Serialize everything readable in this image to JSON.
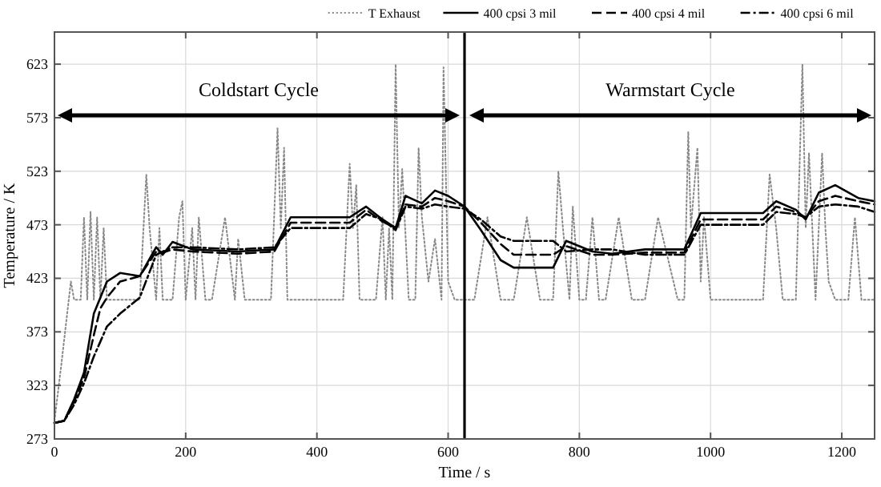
{
  "chart_data": {
    "type": "line",
    "xlabel": "Time / s",
    "ylabel": "Temperature / K",
    "xlim": [
      0,
      1250
    ],
    "ylim": [
      273,
      653
    ],
    "xticks": [
      0,
      200,
      400,
      600,
      800,
      1000,
      1200
    ],
    "yticks": [
      273,
      323,
      373,
      423,
      473,
      523,
      573,
      623
    ],
    "grid": true,
    "legend": "top",
    "ref_lines": [
      {
        "axis": "x",
        "value": 625,
        "color": "#000000"
      }
    ],
    "annotations": [
      "Coldstart Cycle",
      "Warmstart Cycle"
    ],
    "series": [
      {
        "name": "T Exhaust",
        "color": "#888888",
        "line_style": "dotted",
        "x": [
          0,
          10,
          25,
          30,
          40,
          45,
          50,
          55,
          60,
          65,
          70,
          75,
          80,
          90,
          100,
          110,
          130,
          140,
          145,
          155,
          160,
          165,
          170,
          180,
          190,
          195,
          200,
          210,
          215,
          220,
          230,
          240,
          260,
          275,
          280,
          290,
          300,
          330,
          340,
          345,
          350,
          355,
          360,
          370,
          390,
          420,
          440,
          450,
          455,
          460,
          465,
          470,
          480,
          490,
          500,
          505,
          510,
          515,
          520,
          525,
          530,
          540,
          550,
          555,
          560,
          570,
          580,
          590,
          593,
          600,
          610,
          620,
          630,
          640,
          660,
          680,
          700,
          720,
          740,
          760,
          768,
          775,
          785,
          790,
          800,
          810,
          820,
          830,
          840,
          860,
          880,
          900,
          920,
          950,
          960,
          966,
          970,
          980,
          985,
          990,
          1000,
          1020,
          1040,
          1060,
          1080,
          1090,
          1100,
          1110,
          1120,
          1130,
          1140,
          1145,
          1150,
          1160,
          1170,
          1175,
          1180,
          1190,
          1200,
          1210,
          1220,
          1230,
          1240,
          1250
        ],
        "values": [
          290,
          340,
          420,
          403,
          403,
          480,
          403,
          485,
          403,
          480,
          403,
          470,
          403,
          403,
          403,
          403,
          403,
          520,
          470,
          403,
          470,
          403,
          403,
          403,
          480,
          495,
          403,
          470,
          403,
          480,
          403,
          403,
          480,
          403,
          460,
          403,
          403,
          403,
          563,
          470,
          545,
          403,
          403,
          403,
          403,
          403,
          403,
          530,
          470,
          510,
          403,
          403,
          403,
          403,
          480,
          403,
          470,
          403,
          623,
          470,
          525,
          403,
          403,
          545,
          480,
          420,
          460,
          403,
          620,
          420,
          403,
          403,
          403,
          403,
          480,
          403,
          403,
          480,
          403,
          403,
          523,
          470,
          403,
          490,
          403,
          403,
          480,
          403,
          403,
          480,
          403,
          403,
          480,
          403,
          403,
          560,
          470,
          545,
          420,
          480,
          403,
          403,
          403,
          403,
          403,
          520,
          470,
          403,
          403,
          403,
          623,
          470,
          540,
          403,
          540,
          470,
          420,
          403,
          403,
          403,
          480,
          403,
          403,
          403
        ]
      },
      {
        "name": "400 cpsi 3 mil",
        "color": "#000000",
        "line_style": "solid",
        "x": [
          0,
          15,
          30,
          45,
          60,
          80,
          100,
          130,
          155,
          165,
          180,
          210,
          280,
          335,
          360,
          450,
          475,
          500,
          520,
          535,
          560,
          580,
          600,
          625,
          650,
          680,
          700,
          760,
          780,
          820,
          850,
          900,
          960,
          985,
          1080,
          1100,
          1130,
          1145,
          1165,
          1190,
          1225,
          1250
        ],
        "values": [
          288,
          290,
          310,
          335,
          390,
          420,
          428,
          425,
          452,
          445,
          457,
          450,
          448,
          450,
          480,
          480,
          490,
          478,
          470,
          500,
          493,
          505,
          500,
          490,
          468,
          440,
          433,
          433,
          458,
          448,
          446,
          450,
          450,
          484,
          484,
          495,
          487,
          478,
          503,
          510,
          498,
          495
        ]
      },
      {
        "name": "400 cpsi 4 mil",
        "color": "#000000",
        "line_style": "dashed",
        "x": [
          0,
          15,
          30,
          45,
          60,
          70,
          80,
          100,
          130,
          155,
          165,
          180,
          210,
          280,
          335,
          360,
          450,
          475,
          500,
          520,
          535,
          560,
          580,
          600,
          625,
          650,
          680,
          700,
          760,
          780,
          820,
          850,
          900,
          960,
          985,
          1080,
          1100,
          1130,
          1145,
          1165,
          1190,
          1225,
          1250
        ],
        "values": [
          288,
          290,
          308,
          330,
          370,
          395,
          405,
          420,
          425,
          448,
          447,
          450,
          448,
          446,
          448,
          475,
          475,
          487,
          476,
          470,
          492,
          490,
          498,
          495,
          490,
          475,
          455,
          445,
          445,
          453,
          445,
          445,
          447,
          447,
          478,
          478,
          490,
          485,
          480,
          495,
          500,
          495,
          492
        ]
      },
      {
        "name": "400 cpsi 6 mil",
        "color": "#000000",
        "line_style": "dashdot",
        "x": [
          0,
          15,
          30,
          45,
          60,
          80,
          100,
          130,
          155,
          165,
          180,
          210,
          280,
          335,
          360,
          450,
          475,
          500,
          520,
          535,
          560,
          580,
          600,
          625,
          650,
          680,
          700,
          760,
          780,
          820,
          850,
          900,
          960,
          985,
          1080,
          1100,
          1130,
          1145,
          1165,
          1190,
          1225,
          1250
        ],
        "values": [
          288,
          290,
          305,
          325,
          350,
          378,
          390,
          405,
          445,
          448,
          452,
          452,
          450,
          452,
          470,
          470,
          483,
          478,
          468,
          490,
          488,
          492,
          490,
          488,
          478,
          462,
          458,
          458,
          448,
          450,
          450,
          445,
          445,
          473,
          473,
          485,
          483,
          480,
          490,
          492,
          490,
          485
        ]
      }
    ]
  }
}
